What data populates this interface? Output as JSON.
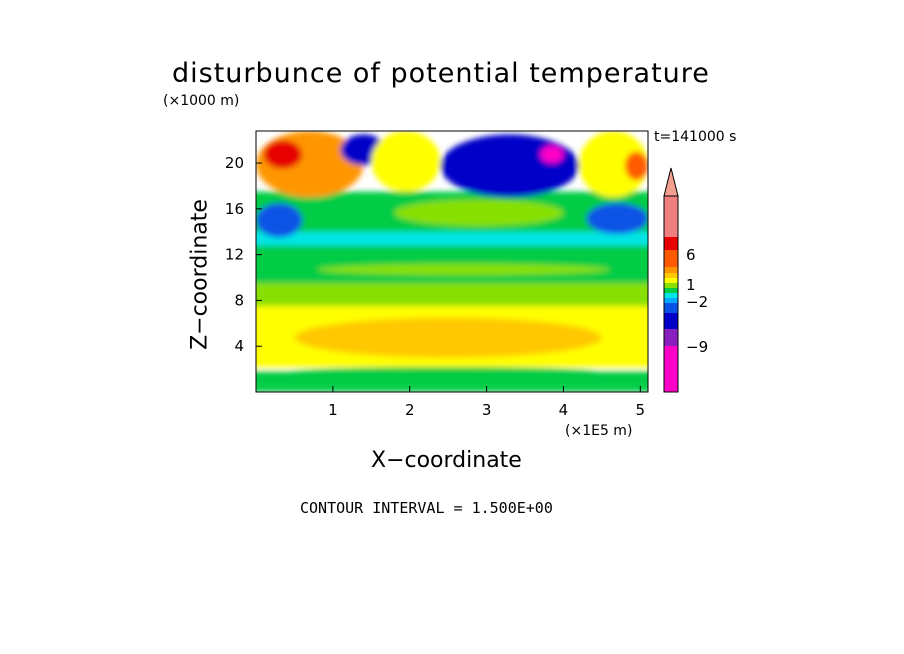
{
  "chart_data": {
    "type": "heatmap",
    "title": "disturbunce of potential temperature",
    "ylabel": "Z−coordinate",
    "xlabel": "X−coordinate",
    "y_unit": "(×1000 m)",
    "x_unit": "(×1E5 m)",
    "time_label": "t=141000 s",
    "footer": "CONTOUR INTERVAL = 1.500E+00",
    "xlim": [
      0,
      5.1
    ],
    "ylim": [
      0,
      22.8
    ],
    "x_ticks": [
      1,
      2,
      3,
      4,
      5
    ],
    "y_ticks": [
      4,
      8,
      12,
      16,
      20
    ],
    "contour_interval": 1.5,
    "colorbar": {
      "colors": [
        "#ff00c8",
        "#8a1fbf",
        "#0000c8",
        "#0a52e6",
        "#00a8ff",
        "#00e5e5",
        "#00cc44",
        "#88e000",
        "#ffff00",
        "#ffc800",
        "#ff9600",
        "#ff5a00",
        "#e60000",
        "#f08080",
        "#f4a090"
      ],
      "labels": [
        "6",
        "1",
        "−2",
        "−9"
      ],
      "label_levels": [
        6,
        1,
        -2,
        -9
      ]
    },
    "field_regions": [
      {
        "x": [
          0,
          5.1
        ],
        "z": [
          0,
          0.6
        ],
        "value": 0.5
      },
      {
        "x": [
          0,
          5.1
        ],
        "z": [
          0.6,
          1.8
        ],
        "value": 0
      },
      {
        "x": [
          0.4,
          4.5
        ],
        "z": [
          1.2,
          2.2
        ],
        "value": 0
      },
      {
        "x": [
          0,
          5.1
        ],
        "z": [
          2.2,
          7.5
        ],
        "value": 2
      },
      {
        "x": [
          0.5,
          4.5
        ],
        "z": [
          3.0,
          6.5
        ],
        "value": 3.5
      },
      {
        "x": [
          0,
          5.1
        ],
        "z": [
          7.5,
          9.5
        ],
        "value": 1
      },
      {
        "x": [
          0,
          5.1
        ],
        "z": [
          9.5,
          12.8
        ],
        "value": 0
      },
      {
        "x": [
          0.8,
          4.6
        ],
        "z": [
          10.2,
          11.2
        ],
        "value": 1
      },
      {
        "x": [
          0,
          5.1
        ],
        "z": [
          12.8,
          14.0
        ],
        "value": -1.5
      },
      {
        "x": [
          0,
          5.1
        ],
        "z": [
          14.0,
          17.5
        ],
        "value": 0
      },
      {
        "x": [
          1.8,
          4.0
        ],
        "z": [
          14.5,
          16.8
        ],
        "value": 1.5
      },
      {
        "x": [
          0,
          0.6
        ],
        "z": [
          13.5,
          16.5
        ],
        "value": -4.5
      },
      {
        "x": [
          4.3,
          5.1
        ],
        "z": [
          13.8,
          16.5
        ],
        "value": -4.5
      },
      {
        "x": [
          0,
          1.4
        ],
        "z": [
          17.0,
          22.8
        ],
        "value": 4.5
      },
      {
        "x": [
          0.1,
          0.6
        ],
        "z": [
          19.5,
          22.0
        ],
        "value": 7.5
      },
      {
        "x": [
          1.1,
          1.7
        ],
        "z": [
          19.8,
          22.5
        ],
        "value": -5
      },
      {
        "x": [
          1.5,
          2.4
        ],
        "z": [
          17.5,
          22.8
        ],
        "value": 3
      },
      {
        "x": [
          2.4,
          4.2
        ],
        "z": [
          17.0,
          22.5
        ],
        "value": -6
      },
      {
        "x": [
          3.7,
          4.0
        ],
        "z": [
          20.0,
          21.5
        ],
        "value": -9
      },
      {
        "x": [
          4.2,
          5.1
        ],
        "z": [
          17.0,
          22.8
        ],
        "value": 3
      },
      {
        "x": [
          4.8,
          5.1
        ],
        "z": [
          18.5,
          21.0
        ],
        "value": 6
      }
    ]
  }
}
